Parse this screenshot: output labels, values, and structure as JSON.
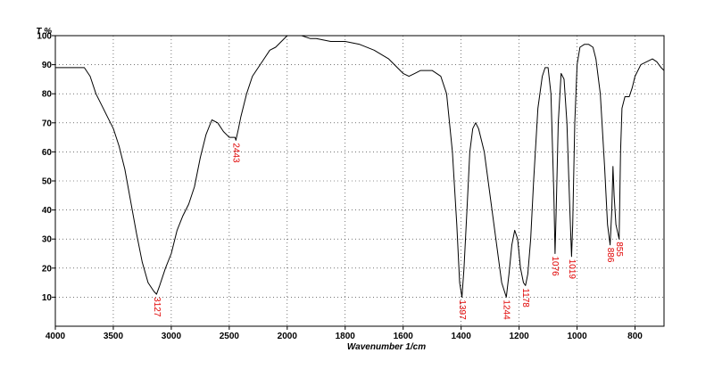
{
  "chart_data": {
    "type": "line",
    "xlabel": "Wavenumber 1/cm",
    "ylabel": "T %",
    "xlim": [
      4000,
      700
    ],
    "ylim": [
      0,
      100
    ],
    "x_reversed": true,
    "grid": true,
    "x_ticks": [
      4000,
      3500,
      3000,
      2500,
      2000,
      1800,
      1600,
      1400,
      1200,
      1000,
      800
    ],
    "x_tick_labels": [
      "4000",
      "3500",
      "3000",
      "2500",
      "2000",
      "1800",
      "1600",
      "1400",
      "1200",
      "1000",
      "800"
    ],
    "y_ticks": [
      10,
      20,
      30,
      40,
      50,
      60,
      70,
      80,
      90,
      100
    ],
    "y_tick_labels": [
      "10",
      "20",
      "30",
      "40",
      "50",
      "60",
      "70",
      "80",
      "90",
      "100"
    ],
    "series": [
      {
        "color": "#000000",
        "points": [
          [
            4000,
            89
          ],
          [
            3750,
            89
          ],
          [
            3700,
            86
          ],
          [
            3650,
            80
          ],
          [
            3600,
            76
          ],
          [
            3550,
            72
          ],
          [
            3500,
            68
          ],
          [
            3450,
            62
          ],
          [
            3400,
            54
          ],
          [
            3350,
            43
          ],
          [
            3300,
            32
          ],
          [
            3250,
            22
          ],
          [
            3200,
            15
          ],
          [
            3150,
            12
          ],
          [
            3127,
            11
          ],
          [
            3100,
            14
          ],
          [
            3050,
            20
          ],
          [
            3000,
            25
          ],
          [
            2950,
            33
          ],
          [
            2900,
            38
          ],
          [
            2850,
            42
          ],
          [
            2800,
            48
          ],
          [
            2750,
            58
          ],
          [
            2700,
            66
          ],
          [
            2650,
            71
          ],
          [
            2600,
            70
          ],
          [
            2550,
            67
          ],
          [
            2500,
            65
          ],
          [
            2450,
            65
          ],
          [
            2443,
            64
          ],
          [
            2420,
            68
          ],
          [
            2400,
            72
          ],
          [
            2350,
            80
          ],
          [
            2300,
            86
          ],
          [
            2250,
            89
          ],
          [
            2200,
            92
          ],
          [
            2150,
            95
          ],
          [
            2100,
            96
          ],
          [
            2050,
            98
          ],
          [
            2000,
            100
          ],
          [
            1950,
            100
          ],
          [
            1920,
            99
          ],
          [
            1900,
            99
          ],
          [
            1850,
            98
          ],
          [
            1800,
            98
          ],
          [
            1750,
            97
          ],
          [
            1700,
            95
          ],
          [
            1650,
            92
          ],
          [
            1620,
            89
          ],
          [
            1600,
            87
          ],
          [
            1580,
            86
          ],
          [
            1560,
            87
          ],
          [
            1540,
            88
          ],
          [
            1500,
            88
          ],
          [
            1470,
            86
          ],
          [
            1450,
            80
          ],
          [
            1430,
            60
          ],
          [
            1415,
            35
          ],
          [
            1405,
            15
          ],
          [
            1397,
            10
          ],
          [
            1390,
            20
          ],
          [
            1380,
            40
          ],
          [
            1370,
            60
          ],
          [
            1360,
            68
          ],
          [
            1350,
            70
          ],
          [
            1340,
            68
          ],
          [
            1320,
            60
          ],
          [
            1300,
            45
          ],
          [
            1280,
            30
          ],
          [
            1260,
            15
          ],
          [
            1244,
            10
          ],
          [
            1235,
            18
          ],
          [
            1225,
            28
          ],
          [
            1215,
            33
          ],
          [
            1205,
            30
          ],
          [
            1195,
            20
          ],
          [
            1185,
            15
          ],
          [
            1178,
            14
          ],
          [
            1170,
            18
          ],
          [
            1160,
            30
          ],
          [
            1150,
            50
          ],
          [
            1135,
            75
          ],
          [
            1120,
            86
          ],
          [
            1110,
            89
          ],
          [
            1100,
            89
          ],
          [
            1090,
            80
          ],
          [
            1080,
            45
          ],
          [
            1076,
            25
          ],
          [
            1072,
            40
          ],
          [
            1065,
            70
          ],
          [
            1055,
            87
          ],
          [
            1045,
            85
          ],
          [
            1035,
            70
          ],
          [
            1025,
            40
          ],
          [
            1019,
            24
          ],
          [
            1015,
            35
          ],
          [
            1008,
            70
          ],
          [
            1000,
            90
          ],
          [
            990,
            96
          ],
          [
            975,
            97
          ],
          [
            960,
            97
          ],
          [
            945,
            96
          ],
          [
            935,
            92
          ],
          [
            920,
            80
          ],
          [
            905,
            55
          ],
          [
            895,
            35
          ],
          [
            886,
            28
          ],
          [
            880,
            40
          ],
          [
            876,
            55
          ],
          [
            872,
            45
          ],
          [
            866,
            35
          ],
          [
            855,
            30
          ],
          [
            850,
            60
          ],
          [
            845,
            75
          ],
          [
            835,
            79
          ],
          [
            820,
            79
          ],
          [
            810,
            82
          ],
          [
            800,
            86
          ],
          [
            780,
            90
          ],
          [
            760,
            91
          ],
          [
            740,
            92
          ],
          [
            725,
            91
          ],
          [
            710,
            89
          ],
          [
            700,
            88
          ]
        ]
      }
    ],
    "annotations": [
      {
        "label": "3127",
        "x": 3127,
        "y": 11
      },
      {
        "label": "2443",
        "x": 2443,
        "y": 64
      },
      {
        "label": "1397",
        "x": 1397,
        "y": 10
      },
      {
        "label": "1244",
        "x": 1244,
        "y": 10
      },
      {
        "label": "1178",
        "x": 1178,
        "y": 14
      },
      {
        "label": "1076",
        "x": 1076,
        "y": 25
      },
      {
        "label": "1019",
        "x": 1019,
        "y": 24
      },
      {
        "label": "886",
        "x": 886,
        "y": 28
      },
      {
        "label": "855",
        "x": 855,
        "y": 30
      }
    ]
  }
}
